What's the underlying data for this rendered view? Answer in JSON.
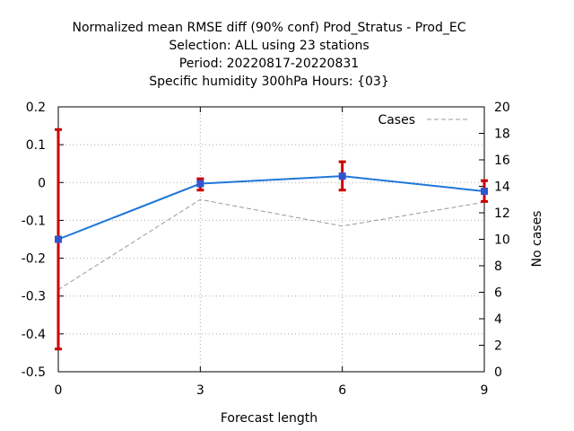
{
  "chart_data": {
    "type": "line",
    "title_lines": [
      "Normalized mean RMSE diff (90% conf) Prod_Stratus - Prod_EC",
      "Selection: ALL using    23 stations",
      "Period: 20220817-20220831",
      "Specific humidity 300hPa   Hours: {03}"
    ],
    "xlabel": "Forecast length",
    "ylabel": "",
    "y2label": "No cases",
    "x_ticks": [
      "0",
      "3",
      "6",
      "9"
    ],
    "x_values": [
      0,
      3,
      6,
      9
    ],
    "xlim": [
      0,
      9
    ],
    "y_ticks": [
      "0.2",
      "0.1",
      "0",
      "-0.1",
      "-0.2",
      "-0.3",
      "-0.4",
      "-0.5"
    ],
    "ylim": [
      -0.5,
      0.2
    ],
    "y2_ticks": [
      "20",
      "18",
      "16",
      "14",
      "12",
      "10",
      "8",
      "6",
      "4",
      "2",
      "0"
    ],
    "y2lim": [
      0,
      20
    ],
    "grid": true,
    "legend_position": "top-right",
    "series": [
      {
        "values": [
          -0.15,
          -0.003,
          0.017,
          -0.023
        ],
        "error_low": [
          -0.44,
          -0.02,
          -0.02,
          -0.05
        ],
        "error_high": [
          0.14,
          0.01,
          0.055,
          0.005
        ],
        "color": "#1f77d8",
        "error_color": "#cc0000",
        "marker_color": "#3355cc",
        "axis": "left"
      },
      {
        "name": "Cases",
        "values": [
          6.2,
          13,
          11,
          12.8
        ],
        "color": "#999999",
        "dashed": true,
        "axis": "right"
      }
    ]
  }
}
